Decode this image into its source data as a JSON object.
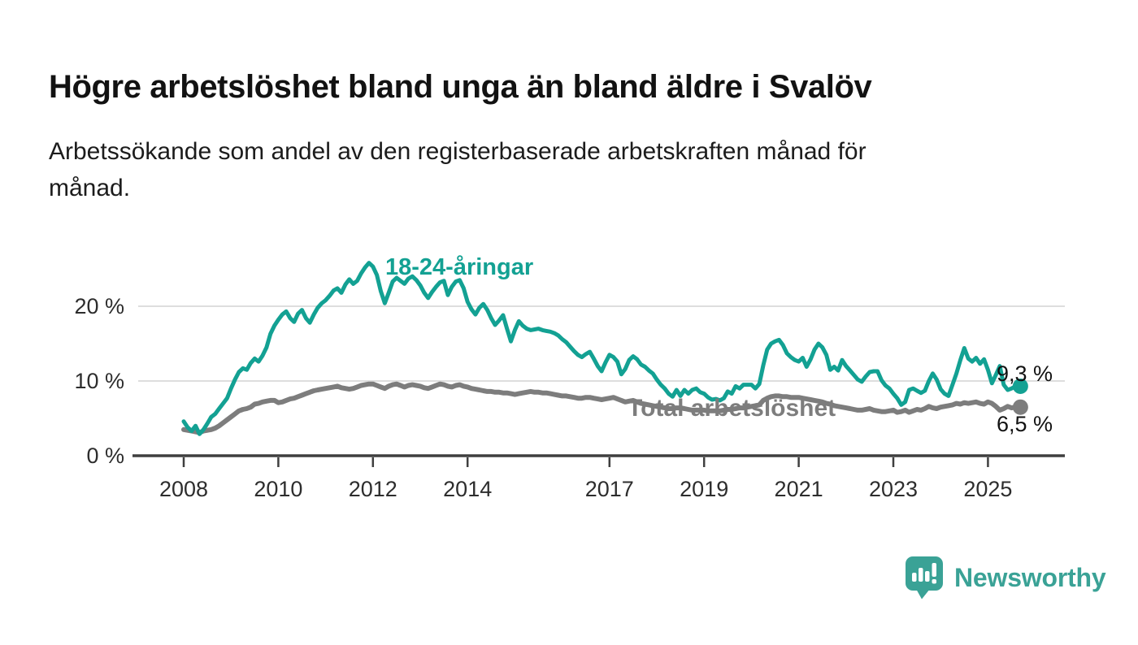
{
  "header": {
    "title": "Högre arbetslöshet bland unga än bland äldre i Svalöv",
    "subtitle": "Arbetssökande som andel av den registerbaserade arbetskraften månad för månad.",
    "subtitle_lines": [
      "Arbetssökande som andel av den registerbaserade arbetskraften månad för",
      "månad."
    ]
  },
  "branding": {
    "logo_text": "Newsworthy",
    "logo_color": "#3aa296",
    "logo_icon": "speech-bubble-bar-chart-exclamation"
  },
  "colors": {
    "background": "#ffffff",
    "axis": "#3f3f3f",
    "grid": "#dedede",
    "tick_label": "#2d2d2d",
    "value_label": "#121212"
  },
  "chart_data": {
    "type": "line",
    "title": "Högre arbetslöshet bland unga än bland äldre i Svalöv",
    "xlabel": "",
    "ylabel": "Arbetssökande som andel av den registerbaserade arbetskraften",
    "x_unit": "month",
    "x_start": "2008-01",
    "points_per_year": 12,
    "grid": "horizontal",
    "legend_position": "inline-labels",
    "ylim": [
      0,
      27.5
    ],
    "x_domain_years": [
      2007.0,
      2026.6
    ],
    "y_ticks": [
      {
        "value": 0,
        "label": "0 %"
      },
      {
        "value": 10,
        "label": "10 %"
      },
      {
        "value": 20,
        "label": "20 %"
      }
    ],
    "x_ticks": [
      {
        "year": 2008,
        "label": "2008"
      },
      {
        "year": 2010,
        "label": "2010"
      },
      {
        "year": 2012,
        "label": "2012"
      },
      {
        "year": 2014,
        "label": "2014"
      },
      {
        "year": 2017,
        "label": "2017"
      },
      {
        "year": 2019,
        "label": "2019"
      },
      {
        "year": 2021,
        "label": "2021"
      },
      {
        "year": 2023,
        "label": "2023"
      },
      {
        "year": 2025,
        "label": "2025"
      }
    ],
    "series": [
      {
        "name": "18-24-åringar",
        "color": "#13a193",
        "end_label": "9,3 %",
        "end_value": 9.3,
        "values": [
          4.6,
          3.8,
          3.3,
          4.0,
          2.9,
          3.5,
          4.3,
          5.2,
          5.6,
          6.3,
          7.0,
          7.7,
          9.0,
          10.2,
          11.2,
          11.7,
          11.5,
          12.4,
          13.0,
          12.6,
          13.4,
          14.5,
          16.3,
          17.4,
          18.2,
          18.9,
          19.3,
          18.4,
          17.9,
          19.0,
          19.5,
          18.4,
          17.8,
          18.9,
          19.8,
          20.4,
          20.8,
          21.4,
          22.1,
          22.4,
          21.8,
          22.9,
          23.6,
          23.0,
          23.4,
          24.4,
          25.2,
          25.8,
          25.3,
          24.2,
          22.0,
          20.4,
          21.8,
          23.3,
          23.8,
          23.4,
          23.0,
          23.7,
          24.0,
          23.5,
          22.8,
          21.8,
          21.1,
          21.9,
          22.6,
          23.2,
          23.4,
          21.5,
          22.6,
          23.3,
          23.5,
          22.4,
          20.6,
          19.6,
          18.9,
          19.8,
          20.3,
          19.5,
          18.4,
          17.5,
          18.1,
          18.8,
          17.0,
          15.3,
          16.8,
          18.0,
          17.4,
          17.0,
          16.8,
          16.9,
          17.0,
          16.8,
          16.7,
          16.6,
          16.4,
          16.1,
          15.6,
          15.2,
          14.6,
          14.0,
          13.5,
          13.2,
          13.6,
          13.9,
          13.0,
          12.0,
          11.3,
          12.5,
          13.5,
          13.2,
          12.6,
          10.9,
          11.6,
          12.8,
          13.3,
          12.9,
          12.2,
          11.9,
          11.4,
          11.0,
          10.2,
          9.5,
          9.0,
          8.3,
          7.9,
          8.8,
          8.0,
          8.8,
          8.3,
          8.8,
          9.0,
          8.5,
          8.3,
          7.8,
          7.5,
          7.6,
          7.4,
          7.7,
          8.6,
          8.3,
          9.3,
          9.0,
          9.5,
          9.5,
          9.5,
          9.0,
          9.6,
          12.1,
          14.2,
          15.0,
          15.3,
          15.5,
          14.8,
          13.7,
          13.2,
          12.8,
          12.6,
          13.1,
          11.9,
          12.9,
          14.2,
          15.0,
          14.5,
          13.5,
          11.5,
          11.9,
          11.4,
          12.8,
          12.0,
          11.4,
          10.8,
          10.2,
          9.9,
          10.6,
          11.2,
          11.3,
          11.3,
          10.1,
          9.4,
          9.0,
          8.3,
          7.7,
          6.8,
          7.2,
          8.8,
          9.0,
          8.7,
          8.4,
          8.7,
          10.0,
          11.0,
          10.2,
          8.9,
          8.3,
          8.0,
          9.5,
          11.0,
          12.8,
          14.4,
          13.0,
          12.6,
          13.1,
          12.3,
          12.9,
          11.5,
          9.7,
          10.8,
          12.0,
          9.5,
          8.8,
          9.0,
          9.3
        ]
      },
      {
        "name": "Total arbetslöshet",
        "color": "#7d7d7d",
        "end_label": "6,5 %",
        "end_value": 6.5,
        "values": [
          3.5,
          3.4,
          3.3,
          3.2,
          3.1,
          3.3,
          3.4,
          3.5,
          3.7,
          4.0,
          4.4,
          4.8,
          5.2,
          5.6,
          6.0,
          6.2,
          6.3,
          6.5,
          6.9,
          7.0,
          7.2,
          7.3,
          7.4,
          7.4,
          7.1,
          7.2,
          7.4,
          7.6,
          7.7,
          7.9,
          8.1,
          8.3,
          8.5,
          8.7,
          8.8,
          8.9,
          9.0,
          9.1,
          9.2,
          9.3,
          9.1,
          9.0,
          8.9,
          9.0,
          9.2,
          9.4,
          9.5,
          9.6,
          9.6,
          9.4,
          9.2,
          9.0,
          9.3,
          9.5,
          9.6,
          9.4,
          9.2,
          9.4,
          9.5,
          9.4,
          9.3,
          9.1,
          9.0,
          9.2,
          9.4,
          9.6,
          9.5,
          9.3,
          9.2,
          9.4,
          9.5,
          9.3,
          9.2,
          9.0,
          8.9,
          8.8,
          8.7,
          8.6,
          8.6,
          8.5,
          8.5,
          8.4,
          8.4,
          8.3,
          8.2,
          8.3,
          8.4,
          8.5,
          8.6,
          8.5,
          8.5,
          8.4,
          8.4,
          8.3,
          8.2,
          8.1,
          8.0,
          8.0,
          7.9,
          7.8,
          7.7,
          7.7,
          7.8,
          7.8,
          7.7,
          7.6,
          7.5,
          7.6,
          7.7,
          7.8,
          7.6,
          7.4,
          7.2,
          7.3,
          7.4,
          7.2,
          7.0,
          6.9,
          6.8,
          6.7,
          6.6,
          6.5,
          6.4,
          6.3,
          6.3,
          6.4,
          6.4,
          6.3,
          6.2,
          6.1,
          6.1,
          6.1,
          6.1,
          6.0,
          6.0,
          6.0,
          6.0,
          6.1,
          6.2,
          6.2,
          6.3,
          6.4,
          6.4,
          6.5,
          6.6,
          6.7,
          6.8,
          7.4,
          7.7,
          7.9,
          8.0,
          8.0,
          7.9,
          7.9,
          7.8,
          7.8,
          7.8,
          7.7,
          7.6,
          7.5,
          7.4,
          7.3,
          7.2,
          7.0,
          6.9,
          6.7,
          6.6,
          6.5,
          6.4,
          6.3,
          6.2,
          6.1,
          6.1,
          6.2,
          6.3,
          6.1,
          6.0,
          5.9,
          5.9,
          6.0,
          6.1,
          5.8,
          5.9,
          6.1,
          5.8,
          6.0,
          6.2,
          6.1,
          6.3,
          6.6,
          6.4,
          6.3,
          6.5,
          6.6,
          6.7,
          6.8,
          7.0,
          6.9,
          7.1,
          7.0,
          7.1,
          7.2,
          7.0,
          6.9,
          7.2,
          7.0,
          6.6,
          6.1,
          6.3,
          6.6,
          6.4,
          6.5
        ]
      }
    ]
  }
}
